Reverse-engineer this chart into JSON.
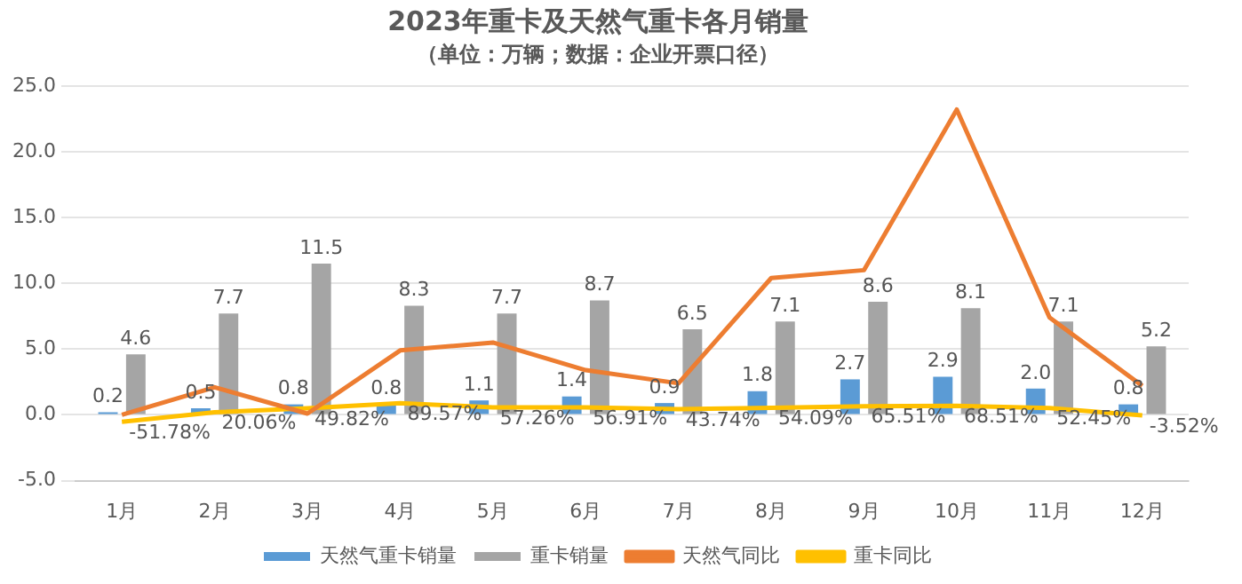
{
  "chart_data": {
    "type": "bar",
    "title": "2023年重卡及天然气重卡各月销量",
    "subtitle": "（单位：万辆；数据：企业开票口径）",
    "categories": [
      "1月",
      "2月",
      "3月",
      "4月",
      "5月",
      "6月",
      "7月",
      "8月",
      "9月",
      "10月",
      "11月",
      "12月"
    ],
    "series": [
      {
        "name": "天然气重卡销量",
        "color": "#5b9bd5",
        "values": [
          0.2,
          0.5,
          0.8,
          0.8,
          1.1,
          1.4,
          0.9,
          1.8,
          2.7,
          2.9,
          2.0,
          0.8
        ],
        "value_labels": [
          "0.2",
          "0.5",
          "0.8",
          "0.8",
          "1.1",
          "1.4",
          "0.9",
          "1.8",
          "2.7",
          "2.9",
          "2.0",
          "0.8"
        ]
      },
      {
        "name": "重卡销量",
        "color": "#a5a5a5",
        "values": [
          4.6,
          7.7,
          11.5,
          8.3,
          7.7,
          8.7,
          6.5,
          7.1,
          8.6,
          8.1,
          7.1,
          5.2
        ],
        "value_labels": [
          "4.6",
          "7.7",
          "11.5",
          "8.3",
          "7.7",
          "8.7",
          "6.5",
          "7.1",
          "8.6",
          "8.1",
          "7.1",
          "5.2"
        ]
      },
      {
        "name": "天然气同比",
        "type": "line",
        "color": "#ed7d31",
        "values": [
          0.0,
          2.1,
          0.1,
          4.9,
          5.5,
          3.4,
          2.4,
          10.4,
          11.0,
          23.2,
          7.4,
          2.2
        ]
      },
      {
        "name": "重卡同比",
        "type": "line",
        "color": "#ffc000",
        "values": [
          -0.5178,
          0.2006,
          0.4982,
          0.8957,
          0.5726,
          0.5691,
          0.4374,
          0.5409,
          0.6551,
          0.6851,
          0.5245,
          -0.0352
        ],
        "value_labels": [
          "-51.78%",
          "20.06%",
          "49.82%",
          "89.57%",
          "57.26%",
          "56.91%",
          "43.74%",
          "54.09%",
          "65.51%",
          "68.51%",
          "52.45%",
          "-3.52%"
        ]
      }
    ],
    "ylim": [
      -5,
      25
    ],
    "yticks": [
      {
        "value": -5,
        "label": "-5.0"
      },
      {
        "value": 0,
        "label": "0.0"
      },
      {
        "value": 5,
        "label": "5.0"
      },
      {
        "value": 10,
        "label": "10.0"
      },
      {
        "value": 15,
        "label": "15.0"
      },
      {
        "value": 20,
        "label": "20.0"
      },
      {
        "value": 25,
        "label": "25.0"
      }
    ],
    "grid": "y",
    "legend": "bottom",
    "marker": "none",
    "line_style": "solid"
  }
}
